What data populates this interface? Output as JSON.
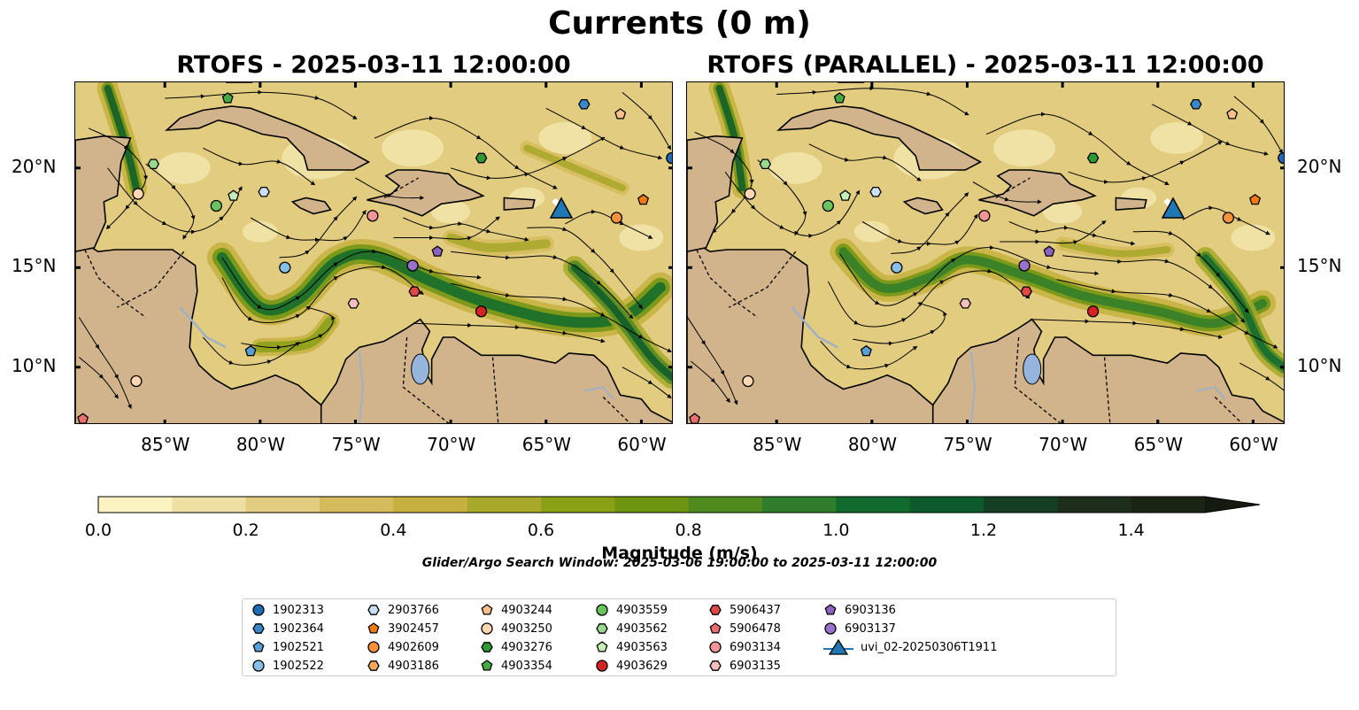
{
  "title": "Currents (0 m)",
  "panels": [
    {
      "title": "RTOFS - 2025-03-11 12:00:00"
    },
    {
      "title": "RTOFS (PARALLEL) - 2025-03-11 12:00:00"
    }
  ],
  "axes": {
    "x_ticks": [
      "85°W",
      "80°W",
      "75°W",
      "70°W",
      "65°W",
      "60°W"
    ],
    "y_ticks": [
      "20°N",
      "15°N",
      "10°N"
    ],
    "lon_values": [
      -85,
      -80,
      -75,
      -70,
      -65,
      -60
    ],
    "lat_values": [
      20,
      15,
      10
    ],
    "lon_range": [
      -89.7,
      -58.3
    ],
    "lat_range": [
      7.1,
      24.3
    ]
  },
  "colorbar": {
    "label": "Magnitude (m/s)",
    "ticks": [
      "0.0",
      "0.2",
      "0.4",
      "0.6",
      "0.8",
      "1.0",
      "1.2",
      "1.4"
    ],
    "tick_values": [
      0.0,
      0.2,
      0.4,
      0.6,
      0.8,
      1.0,
      1.2,
      1.4
    ],
    "range": [
      0,
      1.5
    ],
    "colors": [
      "#fbf4c2",
      "#eedfa2",
      "#e2cc80",
      "#d5bb5c",
      "#c6b040",
      "#a8a82a",
      "#8aa015",
      "#6e9410",
      "#4f8a1e",
      "#2f7d2a",
      "#116a2e",
      "#0d5a2c",
      "#153f25",
      "#1d2f1c",
      "#1a2415"
    ],
    "extend": "max"
  },
  "search_window": "Glider/Argo Search Window: 2025-03-06 19:00:00 to 2025-03-11 12:00:00",
  "colors": {
    "land": "#d2b48c",
    "lake": "#95b5dd",
    "river": "#a0b0c8",
    "glider": "#1f77b4"
  },
  "legend": [
    {
      "label": "1902313",
      "marker": "circle",
      "color": "#1f6bb5"
    },
    {
      "label": "1902364",
      "marker": "hexagon",
      "color": "#3a87c9"
    },
    {
      "label": "1902521",
      "marker": "pentagon",
      "color": "#5a9ed8"
    },
    {
      "label": "1902522",
      "marker": "circle",
      "color": "#88bfe6"
    },
    {
      "label": "2903766",
      "marker": "hexagon",
      "color": "#c8e1f5"
    },
    {
      "label": "3902457",
      "marker": "pentagon",
      "color": "#f47a10"
    },
    {
      "label": "4902609",
      "marker": "circle",
      "color": "#f7923a"
    },
    {
      "label": "4903186",
      "marker": "hexagon",
      "color": "#f9a860"
    },
    {
      "label": "4903244",
      "marker": "pentagon",
      "color": "#fbbf8a"
    },
    {
      "label": "4903250",
      "marker": "circle",
      "color": "#fdd6b3"
    },
    {
      "label": "4903276",
      "marker": "hexagon",
      "color": "#2e9a32"
    },
    {
      "label": "4903354",
      "marker": "pentagon",
      "color": "#47ab42"
    },
    {
      "label": "4903559",
      "marker": "circle",
      "color": "#6cc45e"
    },
    {
      "label": "4903562",
      "marker": "hexagon",
      "color": "#9ad98c"
    },
    {
      "label": "4903563",
      "marker": "pentagon",
      "color": "#c4edba"
    },
    {
      "label": "4903629",
      "marker": "circle",
      "color": "#d62222"
    },
    {
      "label": "5906437",
      "marker": "hexagon",
      "color": "#e04848"
    },
    {
      "label": "5906478",
      "marker": "pentagon",
      "color": "#ea6e6e"
    },
    {
      "label": "6903134",
      "marker": "circle",
      "color": "#f09696"
    },
    {
      "label": "6903135",
      "marker": "hexagon",
      "color": "#f7bebe"
    },
    {
      "label": "6903136",
      "marker": "pentagon",
      "color": "#8c62c0"
    },
    {
      "label": "6903137",
      "marker": "circle",
      "color": "#9a72cc"
    },
    {
      "label": "uvi_02-20250306T1911",
      "marker": "triangle",
      "color": "#1f77b4"
    }
  ],
  "markers": [
    {
      "id": "1902313",
      "lon": -58.4,
      "lat": 20.5
    },
    {
      "id": "1902364",
      "lon": -63.0,
      "lat": 23.2
    },
    {
      "id": "1902521",
      "lon": -80.5,
      "lat": 10.8
    },
    {
      "id": "1902522",
      "lon": -78.7,
      "lat": 15.0
    },
    {
      "id": "2903766",
      "lon": -79.8,
      "lat": 18.8
    },
    {
      "id": "3902457",
      "lon": -59.9,
      "lat": 18.4
    },
    {
      "id": "4902609",
      "lon": -61.3,
      "lat": 17.5
    },
    {
      "id": "4903186",
      "lon": -71.9,
      "lat": 13.8
    },
    {
      "id": "4903244",
      "lon": -61.1,
      "lat": 22.7
    },
    {
      "id": "4903250",
      "lon": -86.4,
      "lat": 18.7
    },
    {
      "id": "4903276",
      "lon": -68.4,
      "lat": 20.5
    },
    {
      "id": "4903354",
      "lon": -81.7,
      "lat": 23.5
    },
    {
      "id": "4903559",
      "lon": -82.3,
      "lat": 18.1
    },
    {
      "id": "4903562",
      "lon": -85.6,
      "lat": 20.2
    },
    {
      "id": "4903563",
      "lon": -81.4,
      "lat": 18.6
    },
    {
      "id": "4903629",
      "lon": -68.4,
      "lat": 12.8
    },
    {
      "id": "5906437",
      "lon": -71.9,
      "lat": 13.8
    },
    {
      "id": "5906478",
      "lon": -89.3,
      "lat": 7.4
    },
    {
      "id": "6903134",
      "lon": -74.1,
      "lat": 17.6
    },
    {
      "id": "6903135",
      "lon": -75.1,
      "lat": 13.2
    },
    {
      "id": "6903136",
      "lon": -70.7,
      "lat": 15.8
    },
    {
      "id": "6903137",
      "lon": -72.0,
      "lat": 15.1
    },
    {
      "id": "4903250b",
      "lon": -86.5,
      "lat": 9.3
    }
  ],
  "glider": {
    "id": "uvi_02-20250306T1911",
    "lon": -64.2,
    "lat": 17.9
  }
}
